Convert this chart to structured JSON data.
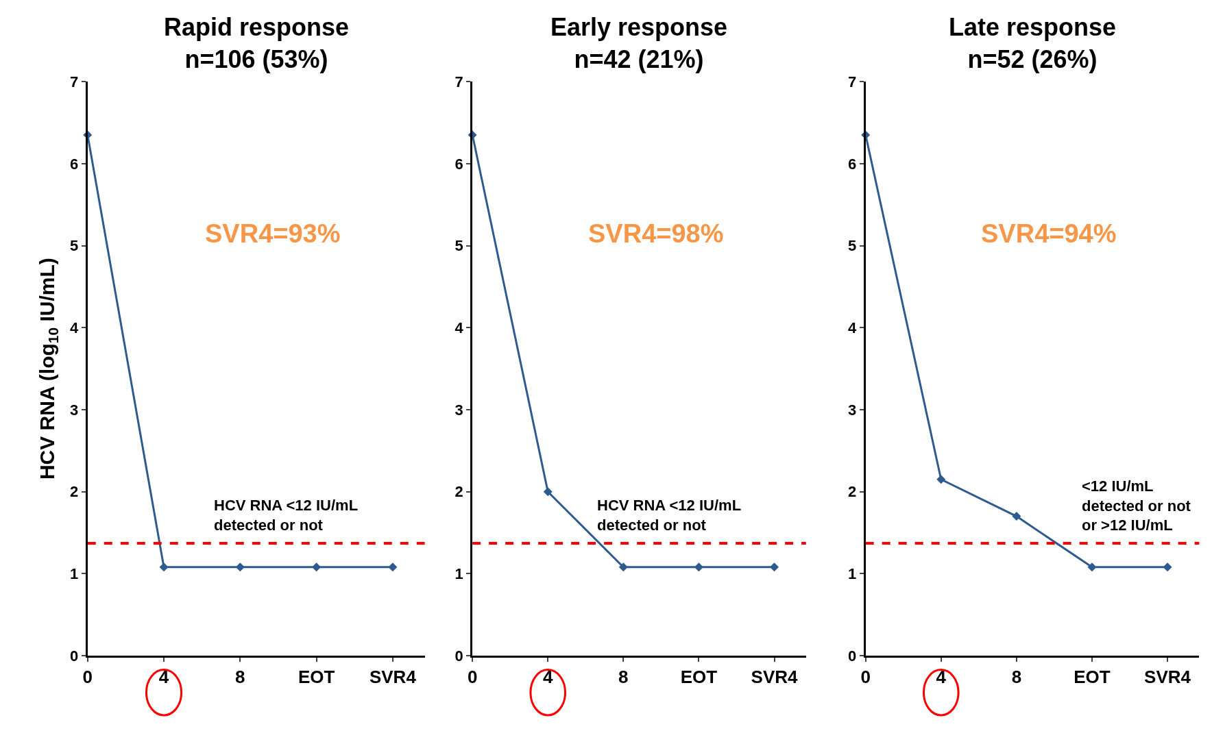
{
  "chart_data": [
    {
      "type": "line",
      "title": "Rapid response\nn=106 (53%)",
      "ylabel": "HCV RNA (log$_{10}$ IU/mL)",
      "categories": [
        "0",
        "4",
        "8",
        "EOT",
        "SVR4"
      ],
      "series": [
        {
          "color": "#2e5b8f",
          "values": [
            6.35,
            1.08,
            1.08,
            1.08,
            1.08
          ]
        }
      ],
      "ylim": [
        0,
        7
      ],
      "yticks": [
        0,
        1,
        2,
        3,
        4,
        5,
        6,
        7
      ],
      "marker": "diamond",
      "line_style": "solid",
      "ref_lines": [
        {
          "axis": "y",
          "value": 1.37,
          "label": "HCV RNA <12 IU/mL\ndetected or not",
          "color": "#ff0000",
          "line_style": "dashed"
        }
      ],
      "annotations": [
        "SVR4=93%"
      ]
    },
    {
      "type": "line",
      "title": "Early response\nn=42 (21%)",
      "categories": [
        "0",
        "4",
        "8",
        "EOT",
        "SVR4"
      ],
      "series": [
        {
          "color": "#2e5b8f",
          "values": [
            6.35,
            2.0,
            1.08,
            1.08,
            1.08
          ]
        }
      ],
      "ylim": [
        0,
        7
      ],
      "yticks": [
        0,
        1,
        2,
        3,
        4,
        5,
        6,
        7
      ],
      "marker": "diamond",
      "line_style": "solid",
      "ref_lines": [
        {
          "axis": "y",
          "value": 1.37,
          "label": "HCV RNA <12 IU/mL\ndetected or not",
          "color": "#ff0000",
          "line_style": "dashed"
        }
      ],
      "annotations": [
        "SVR4=98%"
      ]
    },
    {
      "type": "line",
      "title": "Late response\nn=52 (26%)",
      "categories": [
        "0",
        "4",
        "8",
        "EOT",
        "SVR4"
      ],
      "series": [
        {
          "color": "#2e5b8f",
          "values": [
            6.35,
            2.15,
            1.7,
            1.08,
            1.08
          ]
        }
      ],
      "ylim": [
        0,
        7
      ],
      "yticks": [
        0,
        1,
        2,
        3,
        4,
        5,
        6,
        7
      ],
      "marker": "diamond",
      "line_style": "solid",
      "ref_lines": [
        {
          "axis": "y",
          "value": 1.37,
          "label": "<12 IU/mL\ndetected or not\nor >12 IU/mL",
          "color": "#ff0000",
          "line_style": "dashed"
        }
      ],
      "annotations": [
        "SVR4=94%"
      ]
    }
  ]
}
